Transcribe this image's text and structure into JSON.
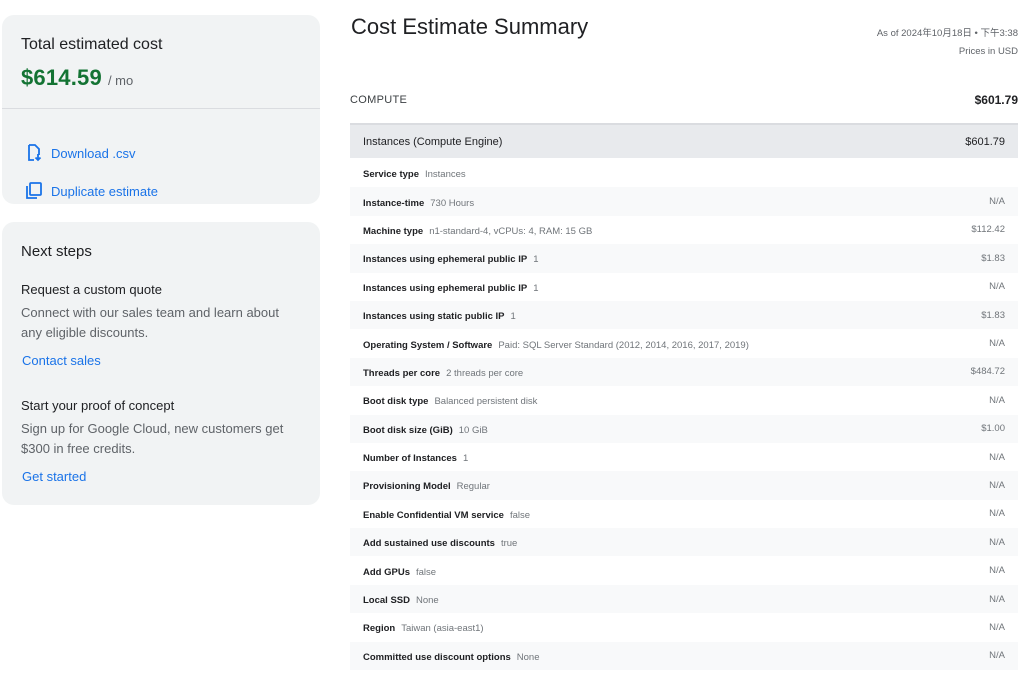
{
  "summary": {
    "total_label": "Total estimated cost",
    "total_amount": "$614.59",
    "total_unit": "/ mo",
    "download_label": "Download .csv",
    "duplicate_label": "Duplicate estimate",
    "accent_color": "#1a73e8",
    "amount_color": "#137333"
  },
  "next_steps": {
    "title": "Next steps",
    "quote_heading": "Request a custom quote",
    "quote_text": "Connect with our sales team and learn about any eligible discounts.",
    "quote_link": "Contact sales",
    "poc_heading": "Start your proof of concept",
    "poc_text": "Sign up for Google Cloud, new customers get $300 in free credits.",
    "poc_link": "Get started"
  },
  "main": {
    "title": "Cost Estimate Summary",
    "as_of": "As of 2024年10月18日 • 下午3:38",
    "prices_in": "Prices in USD",
    "section": {
      "label": "COMPUTE",
      "total": "$601.79"
    },
    "group": {
      "label": "Instances (Compute Engine)",
      "total": "$601.79"
    },
    "items": [
      {
        "name": "Service type",
        "value": "Instances",
        "price": ""
      },
      {
        "name": "Instance-time",
        "value": "730 Hours",
        "price": "N/A"
      },
      {
        "name": "Machine type",
        "value": "n1-standard-4, vCPUs: 4, RAM: 15 GB",
        "price": "$112.42"
      },
      {
        "name": "Instances using ephemeral public IP",
        "value": "1",
        "price": "$1.83"
      },
      {
        "name": "Instances using ephemeral public IP",
        "value": "1",
        "price": "N/A"
      },
      {
        "name": "Instances using static public IP",
        "value": "1",
        "price": "$1.83"
      },
      {
        "name": "Operating System / Software",
        "value": "Paid: SQL Server Standard (2012, 2014, 2016, 2017, 2019)",
        "price": "N/A"
      },
      {
        "name": "Threads per core",
        "value": "2 threads per core",
        "price": "$484.72"
      },
      {
        "name": "Boot disk type",
        "value": "Balanced persistent disk",
        "price": "N/A"
      },
      {
        "name": "Boot disk size (GiB)",
        "value": "10 GiB",
        "price": "$1.00"
      },
      {
        "name": "Number of Instances",
        "value": "1",
        "price": "N/A"
      },
      {
        "name": "Provisioning Model",
        "value": "Regular",
        "price": "N/A"
      },
      {
        "name": "Enable Confidential VM service",
        "value": "false",
        "price": "N/A"
      },
      {
        "name": "Add sustained use discounts",
        "value": "true",
        "price": "N/A"
      },
      {
        "name": "Add GPUs",
        "value": "false",
        "price": "N/A"
      },
      {
        "name": "Local SSD",
        "value": "None",
        "price": "N/A"
      },
      {
        "name": "Region",
        "value": "Taiwan (asia-east1)",
        "price": "N/A"
      },
      {
        "name": "Committed use discount options",
        "value": "None",
        "price": "N/A"
      }
    ]
  },
  "icons": {
    "download": "download-file-icon",
    "duplicate": "copy-icon"
  }
}
